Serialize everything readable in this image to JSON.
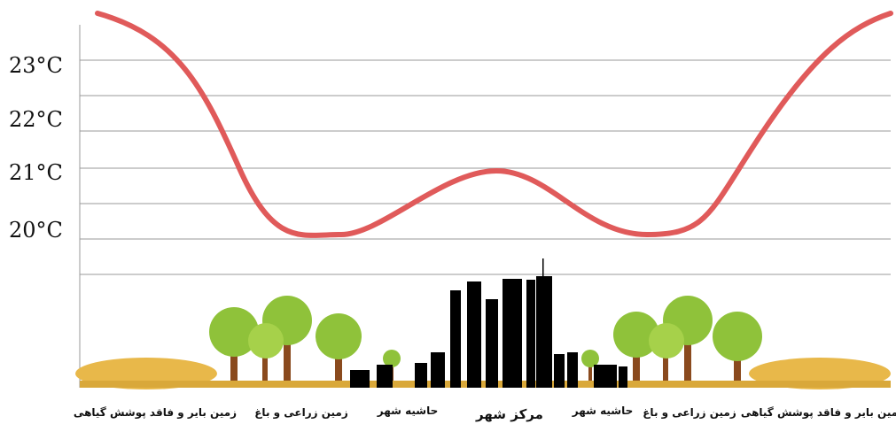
{
  "y_axis_labels": [
    "23°C",
    "22°C",
    "21°C",
    "20°C"
  ],
  "zones": [
    "زمین بایر و فاقد پوشش گیاهی",
    "زمین زراعی و باغ",
    "حاشیه شهر",
    "مرکز شهر",
    "حاشیه شهر",
    "زمین زراعی و باغ",
    "زمین بایر و فاقد پوشش گیاهی"
  ]
}
